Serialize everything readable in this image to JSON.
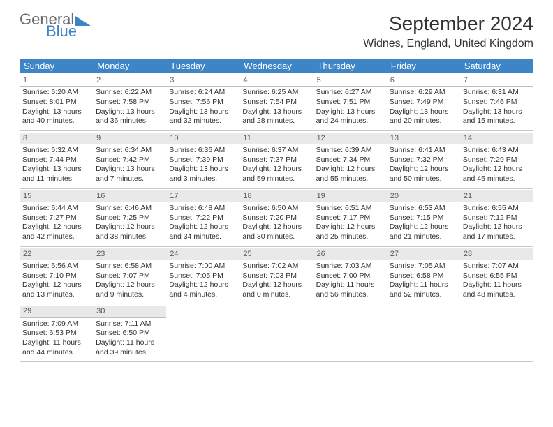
{
  "logo": {
    "text1": "General",
    "text2": "Blue"
  },
  "title": "September 2024",
  "location": "Widnes, England, United Kingdom",
  "colors": {
    "header_bg": "#3d85c6",
    "header_text": "#ffffff",
    "daynum_bg": "#e9e9e9",
    "border": "#c8c8c8",
    "text": "#323232",
    "logo_gray": "#6b6b6b",
    "logo_blue": "#3d85c6"
  },
  "typography": {
    "title_fontsize": 28,
    "location_fontsize": 16,
    "header_fontsize": 13,
    "cell_fontsize": 10.5
  },
  "day_names": [
    "Sunday",
    "Monday",
    "Tuesday",
    "Wednesday",
    "Thursday",
    "Friday",
    "Saturday"
  ],
  "days": [
    {
      "n": "1",
      "sunrise": "6:20 AM",
      "sunset": "8:01 PM",
      "dl1": "Daylight: 13 hours",
      "dl2": "and 40 minutes."
    },
    {
      "n": "2",
      "sunrise": "6:22 AM",
      "sunset": "7:58 PM",
      "dl1": "Daylight: 13 hours",
      "dl2": "and 36 minutes."
    },
    {
      "n": "3",
      "sunrise": "6:24 AM",
      "sunset": "7:56 PM",
      "dl1": "Daylight: 13 hours",
      "dl2": "and 32 minutes."
    },
    {
      "n": "4",
      "sunrise": "6:25 AM",
      "sunset": "7:54 PM",
      "dl1": "Daylight: 13 hours",
      "dl2": "and 28 minutes."
    },
    {
      "n": "5",
      "sunrise": "6:27 AM",
      "sunset": "7:51 PM",
      "dl1": "Daylight: 13 hours",
      "dl2": "and 24 minutes."
    },
    {
      "n": "6",
      "sunrise": "6:29 AM",
      "sunset": "7:49 PM",
      "dl1": "Daylight: 13 hours",
      "dl2": "and 20 minutes."
    },
    {
      "n": "7",
      "sunrise": "6:31 AM",
      "sunset": "7:46 PM",
      "dl1": "Daylight: 13 hours",
      "dl2": "and 15 minutes."
    },
    {
      "n": "8",
      "sunrise": "6:32 AM",
      "sunset": "7:44 PM",
      "dl1": "Daylight: 13 hours",
      "dl2": "and 11 minutes."
    },
    {
      "n": "9",
      "sunrise": "6:34 AM",
      "sunset": "7:42 PM",
      "dl1": "Daylight: 13 hours",
      "dl2": "and 7 minutes."
    },
    {
      "n": "10",
      "sunrise": "6:36 AM",
      "sunset": "7:39 PM",
      "dl1": "Daylight: 13 hours",
      "dl2": "and 3 minutes."
    },
    {
      "n": "11",
      "sunrise": "6:37 AM",
      "sunset": "7:37 PM",
      "dl1": "Daylight: 12 hours",
      "dl2": "and 59 minutes."
    },
    {
      "n": "12",
      "sunrise": "6:39 AM",
      "sunset": "7:34 PM",
      "dl1": "Daylight: 12 hours",
      "dl2": "and 55 minutes."
    },
    {
      "n": "13",
      "sunrise": "6:41 AM",
      "sunset": "7:32 PM",
      "dl1": "Daylight: 12 hours",
      "dl2": "and 50 minutes."
    },
    {
      "n": "14",
      "sunrise": "6:43 AM",
      "sunset": "7:29 PM",
      "dl1": "Daylight: 12 hours",
      "dl2": "and 46 minutes."
    },
    {
      "n": "15",
      "sunrise": "6:44 AM",
      "sunset": "7:27 PM",
      "dl1": "Daylight: 12 hours",
      "dl2": "and 42 minutes."
    },
    {
      "n": "16",
      "sunrise": "6:46 AM",
      "sunset": "7:25 PM",
      "dl1": "Daylight: 12 hours",
      "dl2": "and 38 minutes."
    },
    {
      "n": "17",
      "sunrise": "6:48 AM",
      "sunset": "7:22 PM",
      "dl1": "Daylight: 12 hours",
      "dl2": "and 34 minutes."
    },
    {
      "n": "18",
      "sunrise": "6:50 AM",
      "sunset": "7:20 PM",
      "dl1": "Daylight: 12 hours",
      "dl2": "and 30 minutes."
    },
    {
      "n": "19",
      "sunrise": "6:51 AM",
      "sunset": "7:17 PM",
      "dl1": "Daylight: 12 hours",
      "dl2": "and 25 minutes."
    },
    {
      "n": "20",
      "sunrise": "6:53 AM",
      "sunset": "7:15 PM",
      "dl1": "Daylight: 12 hours",
      "dl2": "and 21 minutes."
    },
    {
      "n": "21",
      "sunrise": "6:55 AM",
      "sunset": "7:12 PM",
      "dl1": "Daylight: 12 hours",
      "dl2": "and 17 minutes."
    },
    {
      "n": "22",
      "sunrise": "6:56 AM",
      "sunset": "7:10 PM",
      "dl1": "Daylight: 12 hours",
      "dl2": "and 13 minutes."
    },
    {
      "n": "23",
      "sunrise": "6:58 AM",
      "sunset": "7:07 PM",
      "dl1": "Daylight: 12 hours",
      "dl2": "and 9 minutes."
    },
    {
      "n": "24",
      "sunrise": "7:00 AM",
      "sunset": "7:05 PM",
      "dl1": "Daylight: 12 hours",
      "dl2": "and 4 minutes."
    },
    {
      "n": "25",
      "sunrise": "7:02 AM",
      "sunset": "7:03 PM",
      "dl1": "Daylight: 12 hours",
      "dl2": "and 0 minutes."
    },
    {
      "n": "26",
      "sunrise": "7:03 AM",
      "sunset": "7:00 PM",
      "dl1": "Daylight: 11 hours",
      "dl2": "and 56 minutes."
    },
    {
      "n": "27",
      "sunrise": "7:05 AM",
      "sunset": "6:58 PM",
      "dl1": "Daylight: 11 hours",
      "dl2": "and 52 minutes."
    },
    {
      "n": "28",
      "sunrise": "7:07 AM",
      "sunset": "6:55 PM",
      "dl1": "Daylight: 11 hours",
      "dl2": "and 48 minutes."
    },
    {
      "n": "29",
      "sunrise": "7:09 AM",
      "sunset": "6:53 PM",
      "dl1": "Daylight: 11 hours",
      "dl2": "and 44 minutes."
    },
    {
      "n": "30",
      "sunrise": "7:11 AM",
      "sunset": "6:50 PM",
      "dl1": "Daylight: 11 hours",
      "dl2": "and 39 minutes."
    }
  ],
  "labels": {
    "sunrise": "Sunrise: ",
    "sunset": "Sunset: "
  }
}
